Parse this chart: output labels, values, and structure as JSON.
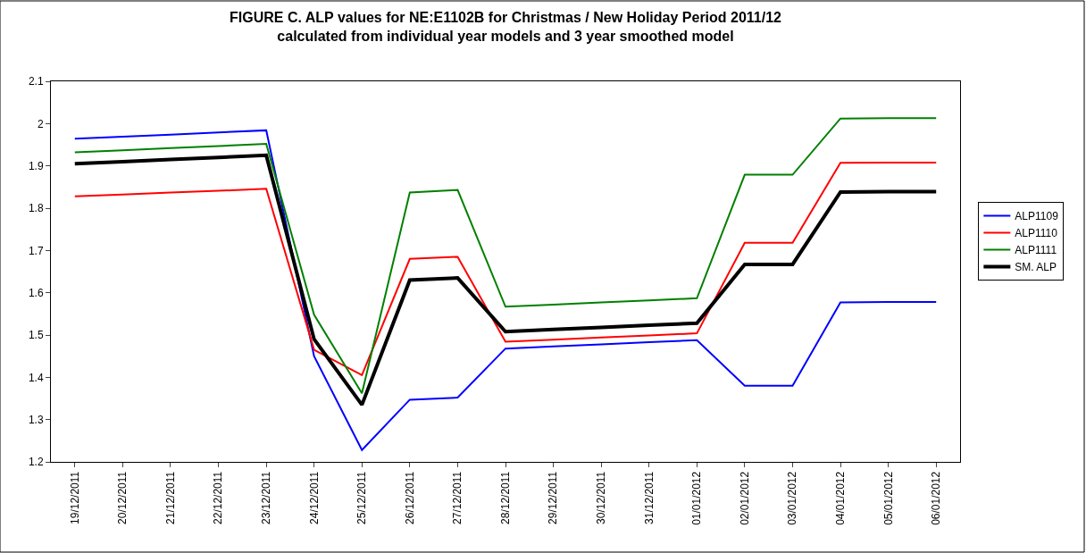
{
  "chart_data": {
    "type": "line",
    "title": "FIGURE C. ALP values for NE:E1102B for Christmas / New Holiday Period 2011/12 calculated from individual year models and 3 year smoothed model",
    "categories": [
      "19/12/2011",
      "20/12/2011",
      "21/12/2011",
      "22/12/2011",
      "23/12/2011",
      "24/12/2011",
      "25/12/2011",
      "26/12/2011",
      "27/12/2011",
      "28/12/2011",
      "29/12/2011",
      "30/12/2011",
      "31/12/2011",
      "01/01/2012",
      "02/01/2012",
      "03/01/2012",
      "04/01/2012",
      "05/01/2012",
      "06/01/2012"
    ],
    "series": [
      {
        "name": "ALP1109",
        "color": "#0000ff",
        "values": [
          1.964,
          1.969,
          1.974,
          1.979,
          1.984,
          1.45,
          1.228,
          1.347,
          1.352,
          1.468,
          1.473,
          1.478,
          1.483,
          1.488,
          1.38,
          1.38,
          1.577,
          1.578,
          1.578
        ]
      },
      {
        "name": "ALP1110",
        "color": "#ff0000",
        "values": [
          1.828,
          1.832,
          1.837,
          1.841,
          1.846,
          1.465,
          1.405,
          1.68,
          1.685,
          1.484,
          1.489,
          1.494,
          1.499,
          1.504,
          1.718,
          1.718,
          1.907,
          1.908,
          1.908
        ]
      },
      {
        "name": "ALP1111",
        "color": "#008000",
        "values": [
          1.932,
          1.937,
          1.942,
          1.947,
          1.952,
          1.548,
          1.362,
          1.837,
          1.843,
          1.567,
          1.572,
          1.577,
          1.582,
          1.587,
          1.879,
          1.879,
          2.012,
          2.013,
          2.013
        ]
      },
      {
        "name": "SM. ALP",
        "color": "#000000",
        "values": [
          1.905,
          1.91,
          1.915,
          1.92,
          1.925,
          1.49,
          1.335,
          1.63,
          1.635,
          1.508,
          1.513,
          1.518,
          1.523,
          1.528,
          1.667,
          1.667,
          1.838,
          1.839,
          1.839
        ]
      }
    ],
    "ylim": [
      1.2,
      2.1
    ],
    "yticks": [
      1.2,
      1.3,
      1.4,
      1.5,
      1.6,
      1.7,
      1.8,
      1.9,
      2,
      2.1
    ],
    "grid": false,
    "legend": "right",
    "marker": "none",
    "line_style": "solid"
  }
}
